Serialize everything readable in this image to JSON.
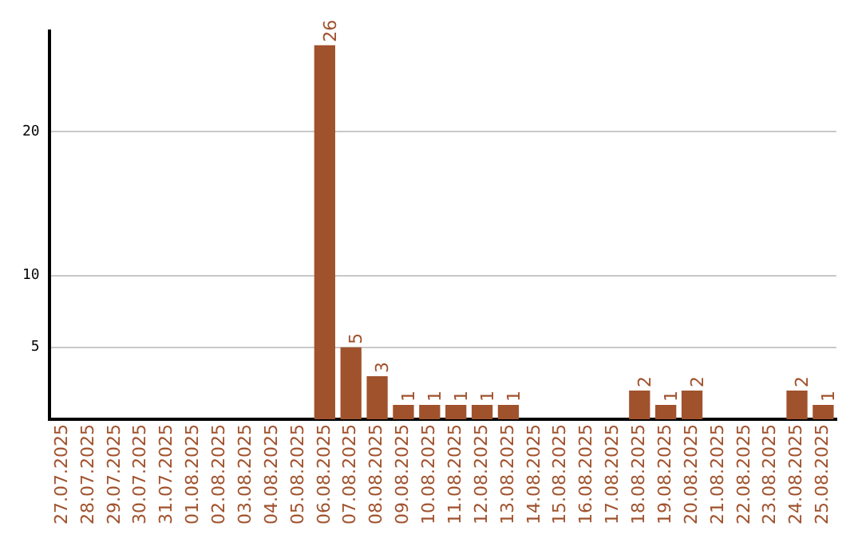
{
  "chart_data": {
    "type": "bar",
    "categories": [
      "27.07.2025",
      "28.07.2025",
      "29.07.2025",
      "30.07.2025",
      "31.07.2025",
      "01.08.2025",
      "02.08.2025",
      "03.08.2025",
      "04.08.2025",
      "05.08.2025",
      "06.08.2025",
      "07.08.2025",
      "08.08.2025",
      "09.08.2025",
      "10.08.2025",
      "11.08.2025",
      "12.08.2025",
      "13.08.2025",
      "14.08.2025",
      "15.08.2025",
      "16.08.2025",
      "17.08.2025",
      "18.08.2025",
      "19.08.2025",
      "20.08.2025",
      "21.08.2025",
      "22.08.2025",
      "23.08.2025",
      "24.08.2025",
      "25.08.2025"
    ],
    "values": [
      0,
      0,
      0,
      0,
      0,
      0,
      0,
      0,
      0,
      0,
      26,
      5,
      3,
      1,
      1,
      1,
      1,
      1,
      0,
      0,
      0,
      0,
      2,
      1,
      2,
      0,
      0,
      0,
      2,
      1
    ],
    "value_labels": [
      null,
      null,
      null,
      null,
      null,
      null,
      null,
      null,
      null,
      null,
      "26",
      "5",
      "3",
      "1",
      "1",
      "1",
      "1",
      "1",
      null,
      null,
      null,
      null,
      "2",
      "1",
      "2",
      null,
      null,
      null,
      "2",
      "1"
    ],
    "color": "#a0522d",
    "ylim": [
      0,
      27
    ],
    "yticks": [
      5,
      10,
      20
    ],
    "grid": "y",
    "legend": false
  }
}
